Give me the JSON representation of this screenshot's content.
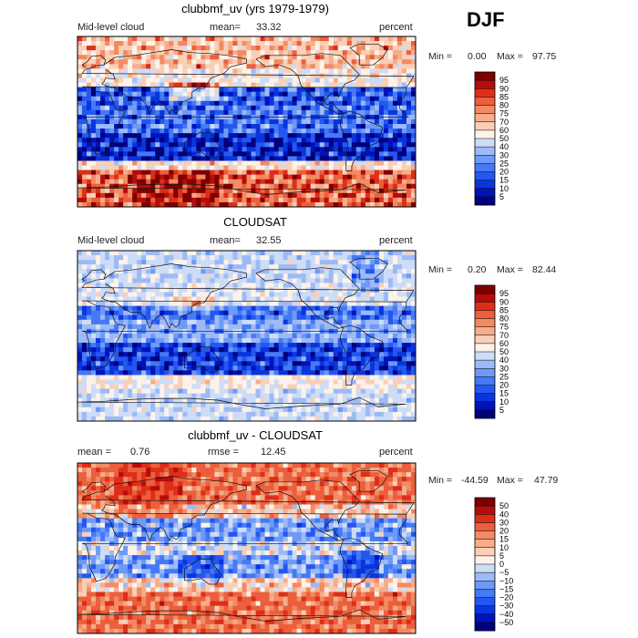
{
  "season": "DJF",
  "chart_data": [
    {
      "type": "heatmap",
      "title": "clubbmf_uv (yrs 1979-1979)",
      "variable": "Mid-level cloud",
      "mean_label": "mean=",
      "mean": "33.32",
      "units": "percent",
      "min_label": "Min =",
      "min": "0.00",
      "max_label": "Max =",
      "max": "97.75",
      "colorbar": [
        "5",
        "10",
        "15",
        "20",
        "25",
        "30",
        "40",
        "50",
        "60",
        "70",
        "75",
        "80",
        "85",
        "90",
        "95"
      ],
      "colors": [
        "#00007a",
        "#0013b8",
        "#0a35dd",
        "#2457ef",
        "#4579f5",
        "#6e99f7",
        "#9dbaf6",
        "#cddcf7",
        "#fcf2ea",
        "#f9cfb6",
        "#f6ad8c",
        "#f28a63",
        "#ec5f3c",
        "#dc2f1a",
        "#b60c0c",
        "#7d0000"
      ],
      "pattern": "model"
    },
    {
      "type": "heatmap",
      "title": "CLOUDSAT",
      "variable": "Mid-level cloud",
      "mean_label": "mean=",
      "mean": "32.55",
      "units": "percent",
      "min_label": "Min =",
      "min": "0.20",
      "max_label": "Max =",
      "max": "82.44",
      "colorbar": [
        "5",
        "10",
        "15",
        "20",
        "25",
        "30",
        "40",
        "50",
        "60",
        "70",
        "75",
        "80",
        "85",
        "90",
        "95"
      ],
      "colors": [
        "#00007a",
        "#0013b8",
        "#0a35dd",
        "#2457ef",
        "#4579f5",
        "#6e99f7",
        "#9dbaf6",
        "#cddcf7",
        "#fcf2ea",
        "#f9cfb6",
        "#f6ad8c",
        "#f28a63",
        "#ec5f3c",
        "#dc2f1a",
        "#b60c0c",
        "#7d0000"
      ],
      "pattern": "obs"
    },
    {
      "type": "heatmap",
      "title": "clubbmf_uv - CLOUDSAT",
      "mean_label": "mean =",
      "mean": "0.76",
      "rmse_label": "rmse =",
      "rmse": "12.45",
      "units": "percent",
      "min_label": "Min =",
      "min": "-44.59",
      "max_label": "Max =",
      "max": "47.79",
      "colorbar": [
        "−50",
        "−40",
        "−30",
        "−20",
        "−15",
        "−10",
        "−5",
        "0",
        "5",
        "10",
        "15",
        "20",
        "30",
        "40",
        "50"
      ],
      "colors": [
        "#00007a",
        "#0013b8",
        "#0a35dd",
        "#2457ef",
        "#4579f5",
        "#6e99f7",
        "#9dbaf6",
        "#cddcf7",
        "#fcf2ea",
        "#f9cfb6",
        "#f6ad8c",
        "#f28a63",
        "#ec5f3c",
        "#dc2f1a",
        "#b60c0c",
        "#7d0000"
      ],
      "pattern": "diff"
    }
  ]
}
